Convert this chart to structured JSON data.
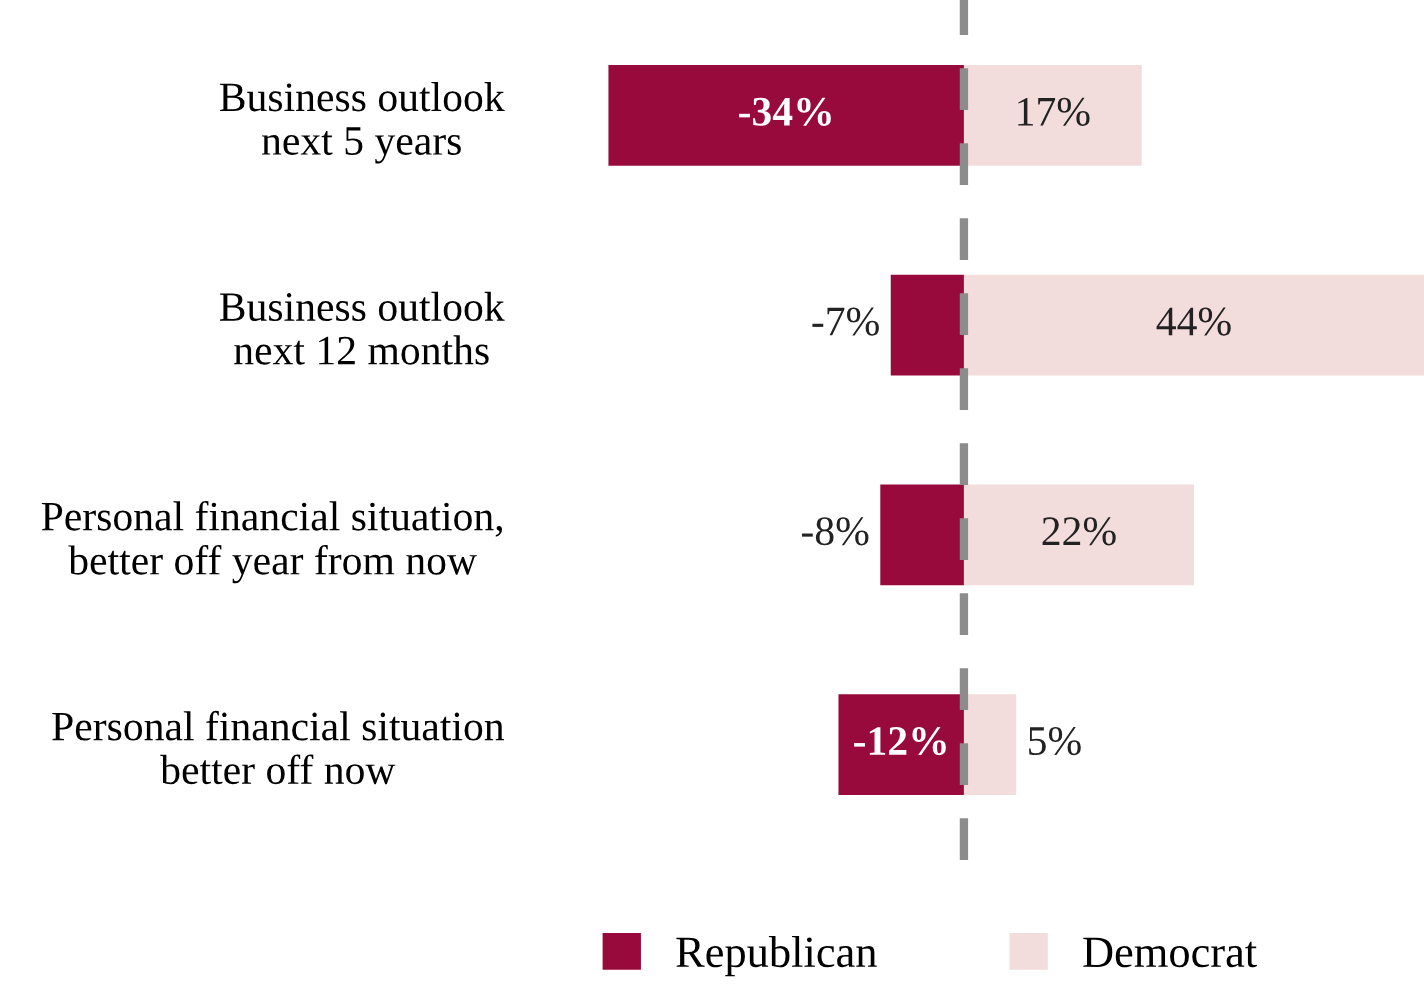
{
  "chart_data": {
    "type": "bar",
    "orientation": "horizontal",
    "stacked": true,
    "categories": [
      "Business outlook\nnext 5 years",
      "Business outlook\nnext 12 months",
      "Personal financial situation,\nbetter off year from now",
      "Personal financial situation\nbetter off now"
    ],
    "series": [
      {
        "name": "Republican",
        "color": "#990a3c",
        "values": [
          -34,
          -7,
          -8,
          -12
        ],
        "value_labels": [
          "-34%",
          "-7%",
          "-8%",
          "-12%"
        ]
      },
      {
        "name": "Democrat",
        "color": "#f2dcdc",
        "values": [
          17,
          44,
          22,
          5
        ],
        "value_labels": [
          "17%",
          "44%",
          "22%",
          "5%"
        ]
      }
    ],
    "ref_lines": [
      {
        "axis": "x",
        "value": 0,
        "color": "#8c8c8c",
        "line_style": "dashed"
      }
    ],
    "legend": "bottom",
    "grid": false,
    "tick_labels": "y"
  }
}
